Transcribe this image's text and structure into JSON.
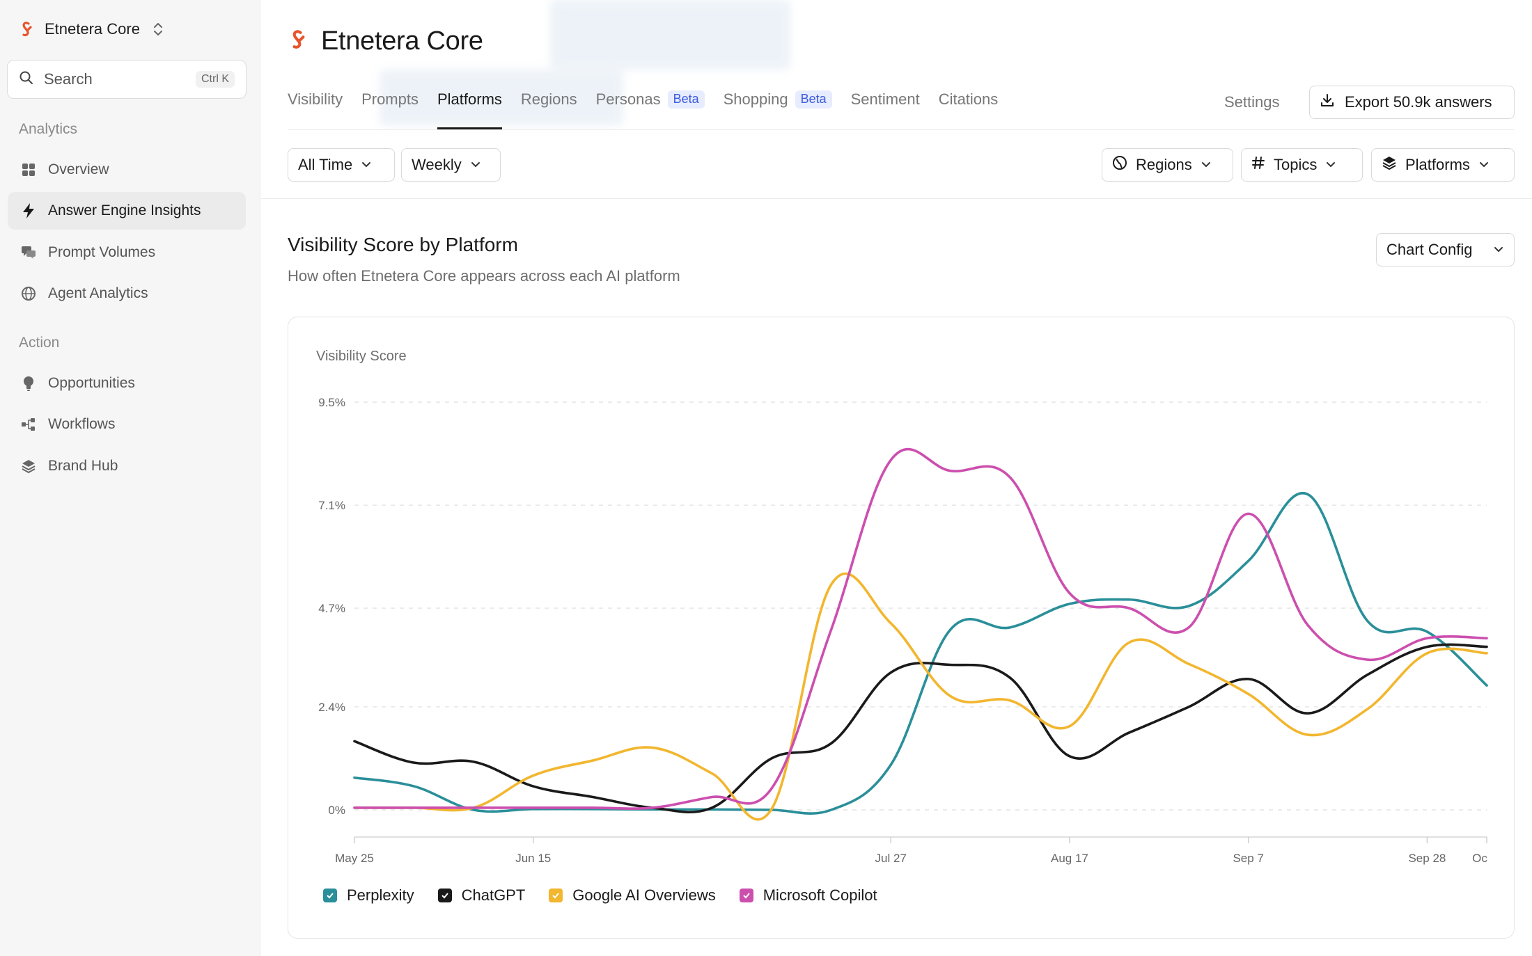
{
  "workspace": {
    "name": "Etnetera Core"
  },
  "search": {
    "label": "Search",
    "shortcut": "Ctrl K"
  },
  "sidebar": {
    "sections": [
      {
        "label": "Analytics",
        "items": [
          {
            "label": "Overview",
            "icon": "grid-icon"
          },
          {
            "label": "Answer Engine Insights",
            "icon": "bolt-icon",
            "active": true
          },
          {
            "label": "Prompt Volumes",
            "icon": "chat-bubbles-icon"
          },
          {
            "label": "Agent Analytics",
            "icon": "globe-icon"
          }
        ]
      },
      {
        "label": "Action",
        "items": [
          {
            "label": "Opportunities",
            "icon": "lightbulb-icon"
          },
          {
            "label": "Workflows",
            "icon": "workflow-icon"
          },
          {
            "label": "Brand Hub",
            "icon": "layers-icon"
          }
        ]
      }
    ]
  },
  "header": {
    "title": "Etnetera Core",
    "tabs": [
      {
        "label": "Visibility"
      },
      {
        "label": "Prompts"
      },
      {
        "label": "Platforms",
        "active": true
      },
      {
        "label": "Regions"
      },
      {
        "label": "Personas",
        "badge": "Beta"
      },
      {
        "label": "Shopping",
        "badge": "Beta"
      },
      {
        "label": "Sentiment"
      },
      {
        "label": "Citations"
      }
    ],
    "settings_label": "Settings",
    "export_label": "Export 50.9k answers"
  },
  "filters": {
    "time_range": "All Time",
    "granularity": "Weekly",
    "regions": "Regions",
    "topics": "Topics",
    "platforms": "Platforms"
  },
  "section": {
    "title": "Visibility Score by Platform",
    "subtitle": "How often Etnetera Core appears across each AI platform",
    "chart_config_label": "Chart Config"
  },
  "colors": {
    "brand": "#e8532a",
    "perplexity": "#2a8f99",
    "chatgpt": "#1a1a1a",
    "google": "#f2b62f",
    "copilot": "#cc4fae"
  },
  "chart_data": {
    "type": "line",
    "ylabel": "Visibility Score",
    "y_ticks": [
      "9.5%",
      "7.1%",
      "4.7%",
      "2.4%",
      "0%"
    ],
    "ylim": [
      0,
      9.5
    ],
    "x_tick_labels": [
      "May 25",
      "Jun 15",
      "Jul 27",
      "Aug 17",
      "Sep 7",
      "Sep 28",
      "Oc"
    ],
    "x": [
      "May 25",
      "Jun 1",
      "Jun 8",
      "Jun 15",
      "Jun 22",
      "Jun 29",
      "Jul 6",
      "Jul 13",
      "Jul 20",
      "Jul 27",
      "Aug 3",
      "Aug 10",
      "Aug 17",
      "Aug 24",
      "Aug 31",
      "Sep 7",
      "Sep 14",
      "Sep 21",
      "Sep 28",
      "Oct 5"
    ],
    "grid": true,
    "legend_position": "bottom-left",
    "series": [
      {
        "name": "Perplexity",
        "color": "#2a8f99",
        "values": [
          0.75,
          0.55,
          0.0,
          0.02,
          0.02,
          0.01,
          0.01,
          0.0,
          0.0,
          1.05,
          4.2,
          4.25,
          4.8,
          4.9,
          4.75,
          5.8,
          7.35,
          4.4,
          4.15,
          2.9
        ]
      },
      {
        "name": "ChatGPT",
        "color": "#1a1a1a",
        "values": [
          1.6,
          1.1,
          1.12,
          0.55,
          0.3,
          0.05,
          0.05,
          1.2,
          1.55,
          3.2,
          3.38,
          3.08,
          1.25,
          1.8,
          2.4,
          3.05,
          2.25,
          3.15,
          3.8,
          3.8
        ]
      },
      {
        "name": "Google AI Overviews",
        "color": "#f2b62f",
        "values": [
          0.05,
          0.05,
          0.05,
          0.8,
          1.15,
          1.45,
          0.85,
          0.02,
          5.25,
          4.35,
          2.65,
          2.55,
          1.95,
          3.9,
          3.4,
          2.7,
          1.75,
          2.35,
          3.65,
          3.65
        ]
      },
      {
        "name": "Microsoft Copilot",
        "color": "#cc4fae",
        "values": [
          0.05,
          0.05,
          0.05,
          0.05,
          0.05,
          0.05,
          0.3,
          0.5,
          4.2,
          8.15,
          7.9,
          7.75,
          5.05,
          4.7,
          4.25,
          6.9,
          4.3,
          3.5,
          4.0,
          4.0
        ]
      }
    ]
  }
}
